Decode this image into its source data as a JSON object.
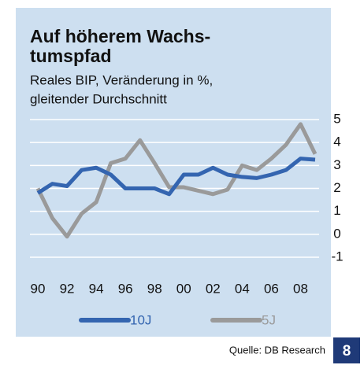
{
  "chart_data": {
    "type": "line",
    "title": [
      "Auf höherem Wachs-",
      "tumspfad"
    ],
    "subtitle": [
      "Reales BIP, Veränderung in %,",
      "gleitender Durchschnitt"
    ],
    "x": [
      1990,
      1991,
      1992,
      1993,
      1994,
      1995,
      1996,
      1997,
      1998,
      1999,
      2000,
      2001,
      2002,
      2003,
      2004,
      2005,
      2006,
      2007,
      2008,
      2009
    ],
    "series": [
      {
        "name": "10J",
        "color": "#3465b0",
        "values": [
          1.8,
          2.2,
          2.1,
          2.8,
          2.9,
          2.6,
          2.0,
          2.0,
          2.0,
          1.75,
          2.6,
          2.6,
          2.9,
          2.6,
          2.5,
          2.45,
          2.6,
          2.8,
          3.3,
          3.25
        ]
      },
      {
        "name": "5J",
        "color": "#9a9a9a",
        "values": [
          2.0,
          0.7,
          -0.1,
          0.9,
          1.4,
          3.1,
          3.3,
          4.1,
          3.1,
          2.05,
          2.05,
          1.9,
          1.75,
          1.95,
          3.0,
          2.8,
          3.3,
          3.9,
          4.8,
          3.5
        ]
      }
    ],
    "xlim": [
      1990,
      2009
    ],
    "xticks": [
      {
        "value": 1990,
        "label": "90"
      },
      {
        "value": 1992,
        "label": "92"
      },
      {
        "value": 1994,
        "label": "94"
      },
      {
        "value": 1996,
        "label": "96"
      },
      {
        "value": 1998,
        "label": "98"
      },
      {
        "value": 2000,
        "label": "00"
      },
      {
        "value": 2002,
        "label": "02"
      },
      {
        "value": 2004,
        "label": "04"
      },
      {
        "value": 2006,
        "label": "06"
      },
      {
        "value": 2008,
        "label": "08"
      }
    ],
    "ylim": [
      -1,
      5
    ],
    "yticks": [
      5,
      4,
      3,
      2,
      1,
      0,
      -1
    ],
    "grid": true,
    "legend": "bottom",
    "source": "Quelle: DB Research",
    "page": "8"
  }
}
